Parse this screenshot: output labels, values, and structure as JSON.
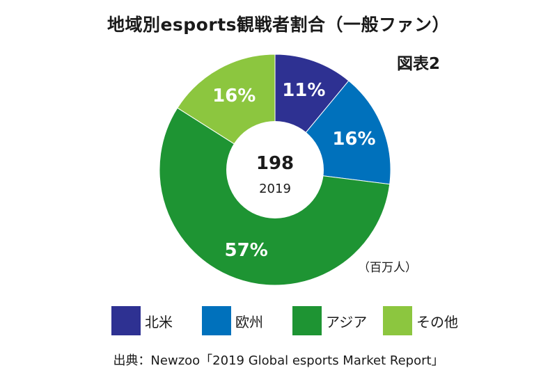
{
  "title": "地域別esports観戦者割合（一般ファン）",
  "figure_no": "図表2",
  "unit": "（百万人）",
  "source": "出典：Newzoo「2019 Global esports Market Report」",
  "colors": {
    "north_america": "#2e3192",
    "europe": "#0071bc",
    "asia": "#1e9433",
    "other": "#8cc63f"
  },
  "chart_data": {
    "type": "pie",
    "donut": true,
    "center_value": "198",
    "center_sub": "2019",
    "slices": [
      {
        "name": "北米",
        "value": 11,
        "label": "11%",
        "color": "#2e3192"
      },
      {
        "name": "欧州",
        "value": 16,
        "label": "16%",
        "color": "#0071bc"
      },
      {
        "name": "アジア",
        "value": 57,
        "label": "57%",
        "color": "#1e9433"
      },
      {
        "name": "その他",
        "value": 16,
        "label": "16%",
        "color": "#8cc63f"
      }
    ],
    "legend": [
      "北米",
      "欧州",
      "アジア",
      "その他"
    ],
    "legend_position": "bottom"
  }
}
